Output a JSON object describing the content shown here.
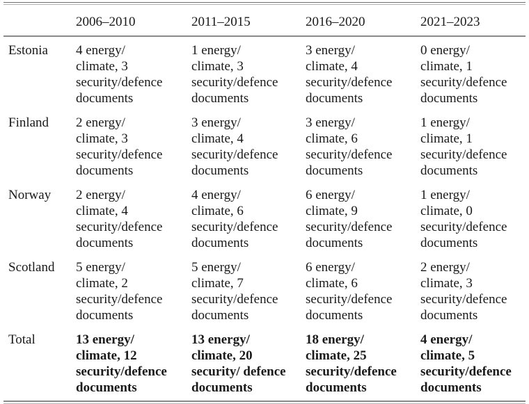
{
  "table": {
    "headers": [
      "",
      "2006–2010",
      "2011–2015",
      "2016–2020",
      "2021–2023"
    ],
    "rows": [
      {
        "label": "Estonia",
        "bold": false,
        "cells": [
          [
            "4 energy/",
            "climate, 3",
            "security/defence",
            "documents"
          ],
          [
            "1 energy/",
            "climate, 3",
            "security/defence",
            "documents"
          ],
          [
            "3 energy/",
            "climate, 4",
            "security/defence",
            "documents"
          ],
          [
            "0 energy/",
            "climate, 1",
            "security/defence",
            "documents"
          ]
        ]
      },
      {
        "label": "Finland",
        "bold": false,
        "cells": [
          [
            "2 energy/",
            "climate, 3",
            "security/defence",
            "documents"
          ],
          [
            "3 energy/",
            "climate, 4",
            "security/defence",
            "documents"
          ],
          [
            "3 energy/",
            "climate, 6",
            "security/defence",
            "documents"
          ],
          [
            "1 energy/",
            "climate, 1",
            "security/defence",
            "documents"
          ]
        ]
      },
      {
        "label": "Norway",
        "bold": false,
        "cells": [
          [
            "2 energy/",
            "climate, 4",
            "security/defence",
            "documents"
          ],
          [
            "4 energy/",
            "climate, 6",
            "security/defence",
            "documents"
          ],
          [
            "6 energy/",
            "climate, 9",
            "security/defence",
            "documents"
          ],
          [
            "1 energy/",
            "climate, 0",
            "security/defence",
            "documents"
          ]
        ]
      },
      {
        "label": "Scotland",
        "bold": false,
        "cells": [
          [
            "5 energy/",
            "climate, 2",
            "security/defence",
            "documents"
          ],
          [
            "5 energy/",
            "climate, 7",
            "security/defence",
            "documents"
          ],
          [
            "6 energy/",
            "climate, 6",
            "security/defence",
            "documents"
          ],
          [
            "2 energy/",
            "climate, 3",
            "security/defence",
            "documents"
          ]
        ]
      },
      {
        "label": "Total",
        "bold": true,
        "cells": [
          [
            "13 energy/",
            "climate, 12",
            "security/defence",
            "documents"
          ],
          [
            "13 energy/",
            "climate, 20",
            "security/ defence",
            "documents"
          ],
          [
            "18 energy/",
            "climate, 25",
            "security/defence",
            "documents"
          ],
          [
            "4 energy/",
            "climate, 5",
            "security/defence",
            "documents"
          ]
        ]
      }
    ]
  }
}
